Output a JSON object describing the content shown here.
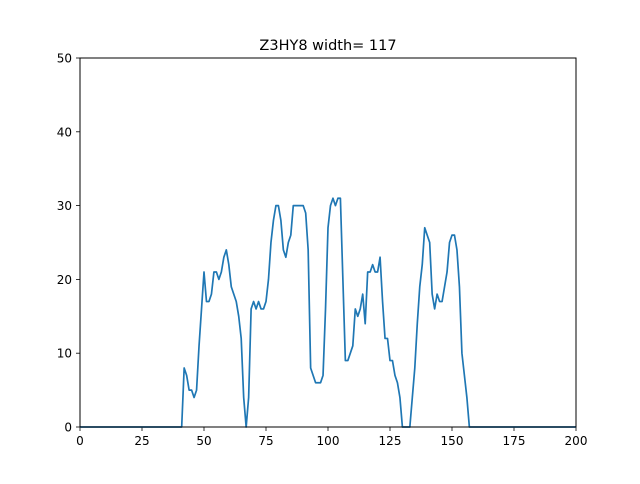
{
  "chart_data": {
    "type": "line",
    "title": "Z3HY8 width= 117",
    "xlabel": "",
    "ylabel": "",
    "xlim": [
      0,
      200
    ],
    "ylim": [
      0,
      50
    ],
    "xticks": [
      0,
      25,
      50,
      75,
      100,
      125,
      150,
      175,
      200
    ],
    "yticks": [
      0,
      10,
      20,
      30,
      40,
      50
    ],
    "grid": false,
    "color": "#1f77b4",
    "points": [
      [
        0,
        0
      ],
      [
        41,
        0
      ],
      [
        42,
        8
      ],
      [
        43,
        7
      ],
      [
        44,
        5
      ],
      [
        45,
        5
      ],
      [
        46,
        4
      ],
      [
        47,
        5
      ],
      [
        48,
        11
      ],
      [
        49,
        16
      ],
      [
        50,
        21
      ],
      [
        51,
        17
      ],
      [
        52,
        17
      ],
      [
        53,
        18
      ],
      [
        54,
        21
      ],
      [
        55,
        21
      ],
      [
        56,
        20
      ],
      [
        57,
        21
      ],
      [
        58,
        23
      ],
      [
        59,
        24
      ],
      [
        60,
        22
      ],
      [
        61,
        19
      ],
      [
        62,
        18
      ],
      [
        63,
        17
      ],
      [
        64,
        15
      ],
      [
        65,
        12
      ],
      [
        66,
        4
      ],
      [
        67,
        0
      ],
      [
        68,
        4
      ],
      [
        69,
        16
      ],
      [
        70,
        17
      ],
      [
        71,
        16
      ],
      [
        72,
        17
      ],
      [
        73,
        16
      ],
      [
        74,
        16
      ],
      [
        75,
        17
      ],
      [
        76,
        20
      ],
      [
        77,
        25
      ],
      [
        78,
        28
      ],
      [
        79,
        30
      ],
      [
        80,
        30
      ],
      [
        81,
        28
      ],
      [
        82,
        24
      ],
      [
        83,
        23
      ],
      [
        84,
        25
      ],
      [
        85,
        26
      ],
      [
        86,
        30
      ],
      [
        87,
        30
      ],
      [
        88,
        30
      ],
      [
        89,
        30
      ],
      [
        90,
        30
      ],
      [
        91,
        29
      ],
      [
        92,
        24
      ],
      [
        93,
        8
      ],
      [
        94,
        7
      ],
      [
        95,
        6
      ],
      [
        96,
        6
      ],
      [
        97,
        6
      ],
      [
        98,
        7
      ],
      [
        99,
        16
      ],
      [
        100,
        27
      ],
      [
        101,
        30
      ],
      [
        102,
        31
      ],
      [
        103,
        30
      ],
      [
        104,
        31
      ],
      [
        105,
        31
      ],
      [
        106,
        20
      ],
      [
        107,
        9
      ],
      [
        108,
        9
      ],
      [
        109,
        10
      ],
      [
        110,
        11
      ],
      [
        111,
        16
      ],
      [
        112,
        15
      ],
      [
        113,
        16
      ],
      [
        114,
        18
      ],
      [
        115,
        14
      ],
      [
        116,
        21
      ],
      [
        117,
        21
      ],
      [
        118,
        22
      ],
      [
        119,
        21
      ],
      [
        120,
        21
      ],
      [
        121,
        23
      ],
      [
        122,
        17
      ],
      [
        123,
        12
      ],
      [
        124,
        12
      ],
      [
        125,
        9
      ],
      [
        126,
        9
      ],
      [
        127,
        7
      ],
      [
        128,
        6
      ],
      [
        129,
        4
      ],
      [
        130,
        0
      ],
      [
        133,
        0
      ],
      [
        134,
        4
      ],
      [
        135,
        8
      ],
      [
        136,
        14
      ],
      [
        137,
        19
      ],
      [
        138,
        22
      ],
      [
        139,
        27
      ],
      [
        140,
        26
      ],
      [
        141,
        25
      ],
      [
        142,
        18
      ],
      [
        143,
        16
      ],
      [
        144,
        18
      ],
      [
        145,
        17
      ],
      [
        146,
        17
      ],
      [
        147,
        19
      ],
      [
        148,
        21
      ],
      [
        149,
        25
      ],
      [
        150,
        26
      ],
      [
        151,
        26
      ],
      [
        152,
        24
      ],
      [
        153,
        19
      ],
      [
        154,
        10
      ],
      [
        155,
        7
      ],
      [
        156,
        4
      ],
      [
        157,
        0
      ],
      [
        200,
        0
      ]
    ]
  }
}
